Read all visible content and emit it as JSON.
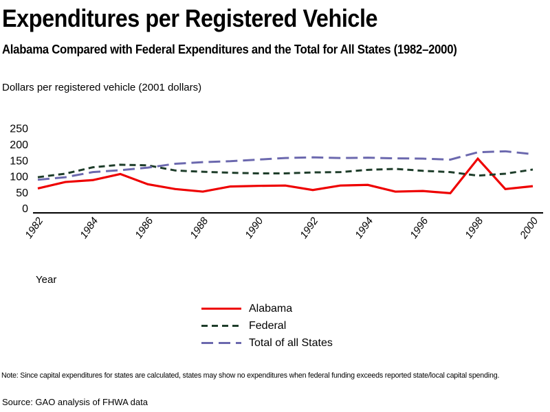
{
  "header": {
    "title": "Expenditures per Registered Vehicle",
    "subtitle": "Alabama Compared with Federal Expenditures and the Total for All States (1982–2000)"
  },
  "footer": {
    "note": "Note:  Since capital expenditures for states are calculated, states may show no expenditures when federal funding exceeds reported state/local capital spending.",
    "source": "Source: GAO analysis of FHWA data"
  },
  "chart_data": {
    "type": "line",
    "title": "Expenditures per Registered Vehicle",
    "ylabel": "Dollars per registered vehicle (2001 dollars)",
    "xlabel": "Year",
    "ylim": [
      0,
      250
    ],
    "yticks": [
      0,
      50,
      100,
      150,
      200,
      250
    ],
    "xticks": [
      1982,
      1984,
      1986,
      1988,
      1990,
      1992,
      1994,
      1996,
      1998,
      2000
    ],
    "x": [
      1982,
      1983,
      1984,
      1985,
      1986,
      1987,
      1988,
      1989,
      1990,
      1991,
      1992,
      1993,
      1994,
      1995,
      1996,
      1997,
      1998,
      1999,
      2000
    ],
    "grid": false,
    "legend_position": "bottom-center",
    "axis_color": "#000000",
    "series": [
      {
        "name": "Alabama",
        "style": "solid",
        "color": "#ee0000",
        "values": [
          65,
          85,
          91,
          110,
          78,
          63,
          55,
          71,
          73,
          74,
          60,
          74,
          76,
          55,
          57,
          50,
          158,
          63,
          72
        ]
      },
      {
        "name": "Federal",
        "style": "dashed",
        "color": "#1e3d2a",
        "values": [
          100,
          111,
          131,
          139,
          137,
          121,
          117,
          114,
          112,
          112,
          115,
          116,
          123,
          126,
          120,
          116,
          105,
          111,
          124
        ]
      },
      {
        "name": "Total of all States",
        "style": "long-dash",
        "color": "#6b68ae",
        "values": [
          92,
          100,
          116,
          122,
          130,
          142,
          147,
          150,
          155,
          160,
          162,
          160,
          161,
          159,
          158,
          155,
          178,
          181,
          172
        ]
      }
    ]
  }
}
